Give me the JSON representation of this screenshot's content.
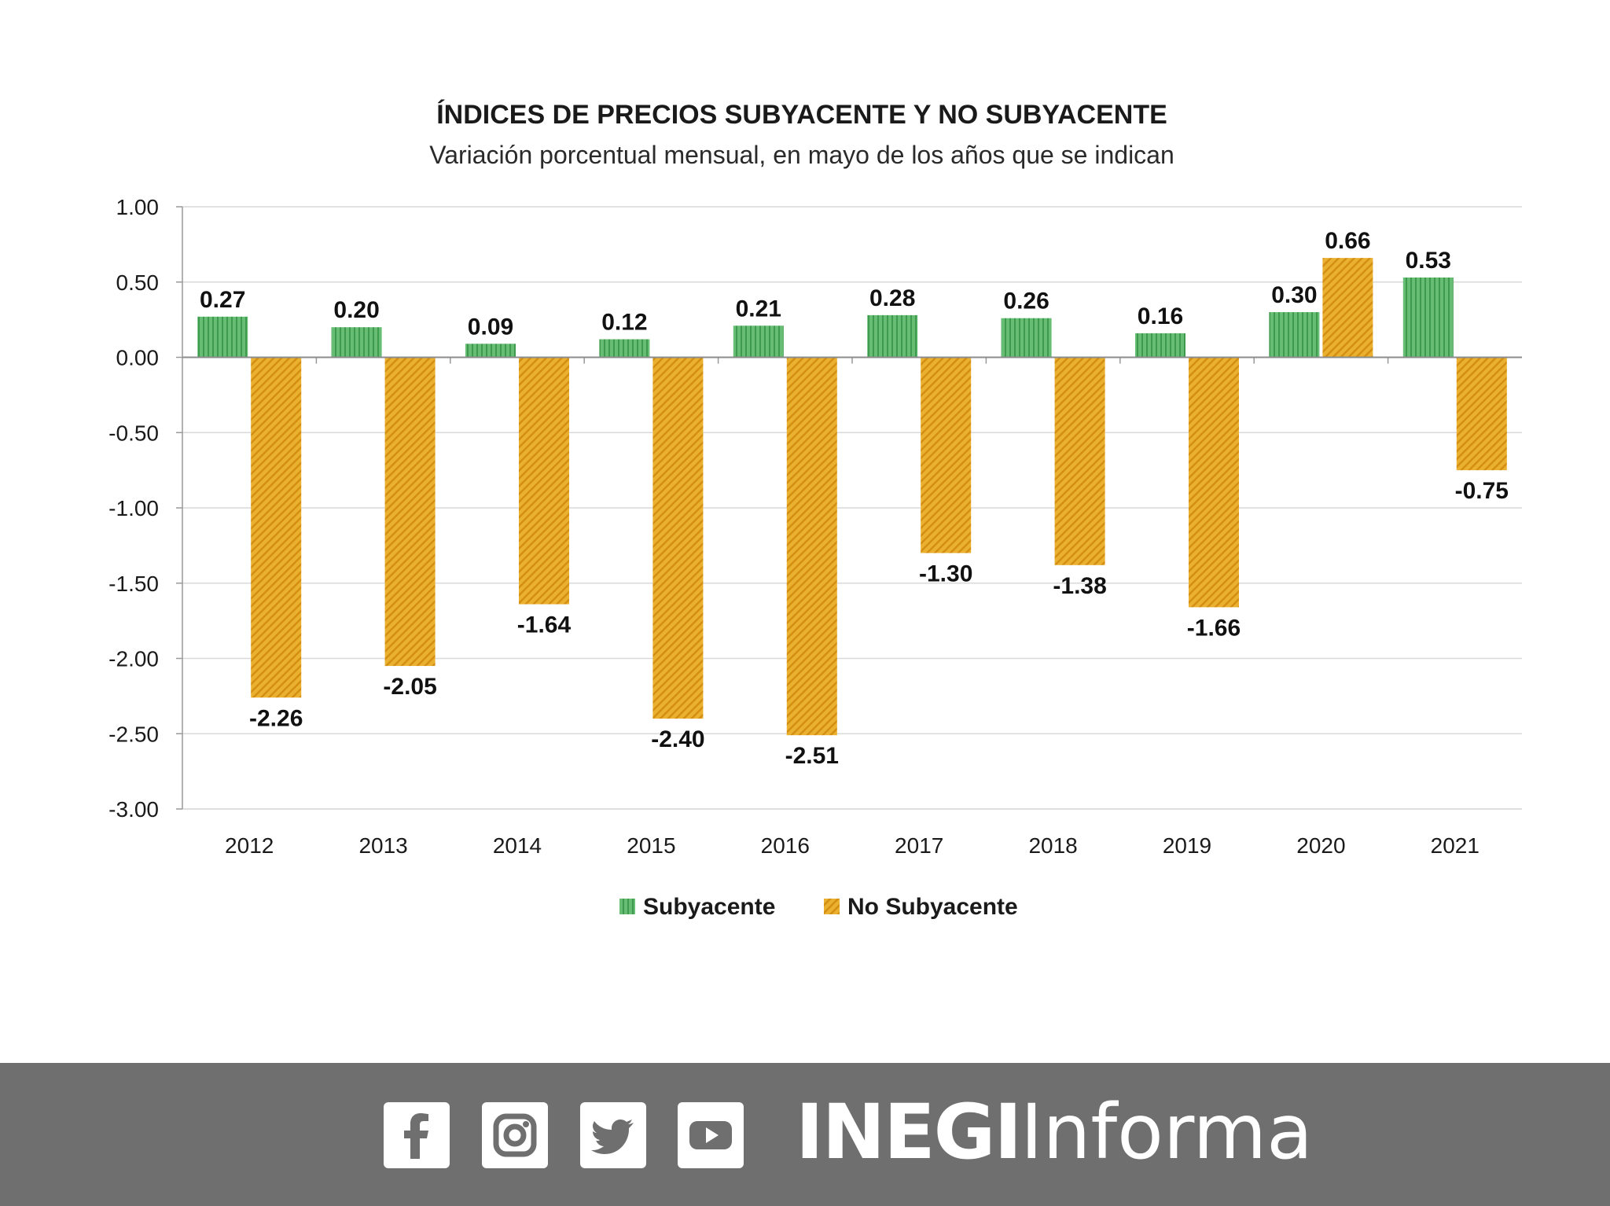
{
  "chart_data": {
    "type": "bar",
    "title": "ÍNDICES DE PRECIOS SUBYACENTE Y NO SUBYACENTE",
    "subtitle": "Variación porcentual mensual, en mayo de los años que se indican",
    "categories": [
      "2012",
      "2013",
      "2014",
      "2015",
      "2016",
      "2017",
      "2018",
      "2019",
      "2020",
      "2021"
    ],
    "series": [
      {
        "name": "Subyacente",
        "values": [
          0.27,
          0.2,
          0.09,
          0.12,
          0.21,
          0.28,
          0.26,
          0.16,
          0.3,
          0.53
        ],
        "labels": [
          "0.27",
          "0.20",
          "0.09",
          "0.12",
          "0.21",
          "0.28",
          "0.26",
          "0.16",
          "0.30",
          "0.53"
        ],
        "color": "#5fb56a",
        "pattern": "vertical-stripes"
      },
      {
        "name": "No Subyacente",
        "values": [
          -2.26,
          -2.05,
          -1.64,
          -2.4,
          -2.51,
          -1.3,
          -1.38,
          -1.66,
          0.66,
          -0.75
        ],
        "labels": [
          "-2.26",
          "-2.05",
          "-1.64",
          "-2.40",
          "-2.51",
          "-1.30",
          "-1.38",
          "-1.66",
          "0.66",
          "-0.75"
        ],
        "color": "#e8a524",
        "pattern": "diagonal-hatch"
      }
    ],
    "ylim": [
      -3.0,
      1.0
    ],
    "yticks": [
      "1.00",
      "0.50",
      "0.00",
      "-0.50",
      "-1.00",
      "-1.50",
      "-2.00",
      "-2.50",
      "-3.00"
    ],
    "ytick_values": [
      1.0,
      0.5,
      0.0,
      -0.5,
      -1.0,
      -1.5,
      -2.0,
      -2.5,
      -3.0
    ],
    "xlabel": "",
    "ylabel": "",
    "grid": true,
    "legend_position": "bottom"
  },
  "footer": {
    "background": "#6f6f6f",
    "icons": [
      "facebook-icon",
      "instagram-icon",
      "twitter-icon",
      "youtube-icon"
    ],
    "brand_bold": "INEGI",
    "brand_light": "Informa"
  }
}
